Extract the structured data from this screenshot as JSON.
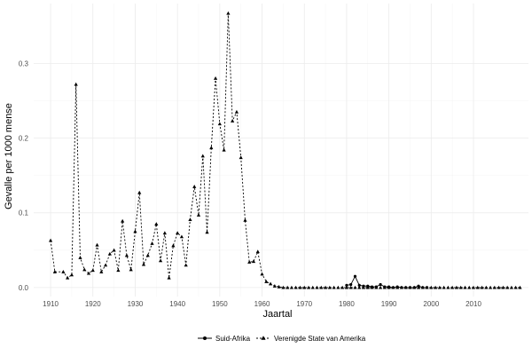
{
  "chart_data": {
    "type": "line",
    "title": "",
    "xlabel": "Jaartal",
    "ylabel": "Gevalle per 1000 mense",
    "xlim": [
      1906,
      2023
    ],
    "ylim": [
      -0.012,
      0.38
    ],
    "x_ticks": [
      1910,
      1920,
      1930,
      1940,
      1950,
      1960,
      1970,
      1980,
      1990,
      2000,
      2010
    ],
    "y_ticks": [
      0.0,
      0.1,
      0.2,
      0.3
    ],
    "y_tick_labels": [
      "0.0",
      "0.1",
      "0.2",
      "0.3"
    ],
    "grid": true,
    "legend_position": "bottom",
    "series": [
      {
        "name": "Suid-Afrika",
        "marker": "circle",
        "line": "solid",
        "color": "#000000",
        "points": [
          [
            1980,
            0.003
          ],
          [
            1981,
            0.004
          ],
          [
            1982,
            0.015
          ],
          [
            1983,
            0.003
          ],
          [
            1984,
            0.002
          ],
          [
            1985,
            0.002
          ],
          [
            1986,
            0.001
          ],
          [
            1987,
            0.001
          ],
          [
            1988,
            0.004
          ],
          [
            1989,
            0.001
          ],
          [
            1990,
            0.001
          ],
          [
            1991,
            0.0
          ],
          [
            1992,
            0.001
          ],
          [
            1993,
            0.0
          ],
          [
            1994,
            0.0
          ],
          [
            1995,
            0.0
          ],
          [
            1996,
            0.0
          ],
          [
            1997,
            0.002
          ],
          [
            1998,
            0.0
          ],
          [
            1999,
            0.0
          ]
        ]
      },
      {
        "name": "Verenigde State van Amerika",
        "marker": "triangle",
        "line": "dashed",
        "color": "#000000",
        "points": [
          [
            1910,
            0.063
          ],
          [
            1911,
            0.021
          ],
          [
            1913,
            0.021
          ],
          [
            1914,
            0.013
          ],
          [
            1915,
            0.017
          ],
          [
            1916,
            0.272
          ],
          [
            1917,
            0.04
          ],
          [
            1918,
            0.024
          ],
          [
            1919,
            0.019
          ],
          [
            1920,
            0.023
          ],
          [
            1921,
            0.057
          ],
          [
            1922,
            0.021
          ],
          [
            1923,
            0.03
          ],
          [
            1924,
            0.045
          ],
          [
            1925,
            0.05
          ],
          [
            1926,
            0.023
          ],
          [
            1927,
            0.089
          ],
          [
            1928,
            0.043
          ],
          [
            1929,
            0.024
          ],
          [
            1930,
            0.075
          ],
          [
            1931,
            0.127
          ],
          [
            1932,
            0.031
          ],
          [
            1933,
            0.043
          ],
          [
            1934,
            0.059
          ],
          [
            1935,
            0.085
          ],
          [
            1936,
            0.036
          ],
          [
            1937,
            0.073
          ],
          [
            1938,
            0.013
          ],
          [
            1939,
            0.056
          ],
          [
            1940,
            0.073
          ],
          [
            1941,
            0.068
          ],
          [
            1942,
            0.03
          ],
          [
            1943,
            0.091
          ],
          [
            1944,
            0.135
          ],
          [
            1945,
            0.097
          ],
          [
            1946,
            0.176
          ],
          [
            1947,
            0.074
          ],
          [
            1948,
            0.187
          ],
          [
            1949,
            0.28
          ],
          [
            1950,
            0.219
          ],
          [
            1951,
            0.184
          ],
          [
            1952,
            0.367
          ],
          [
            1953,
            0.223
          ],
          [
            1954,
            0.235
          ],
          [
            1955,
            0.174
          ],
          [
            1956,
            0.09
          ],
          [
            1957,
            0.034
          ],
          [
            1958,
            0.035
          ],
          [
            1959,
            0.048
          ],
          [
            1960,
            0.018
          ],
          [
            1961,
            0.008
          ],
          [
            1962,
            0.005
          ],
          [
            1963,
            0.002
          ],
          [
            1964,
            0.001
          ],
          [
            1965,
            0.0
          ],
          [
            1966,
            0.0
          ],
          [
            1967,
            0.0
          ],
          [
            1968,
            0.0
          ],
          [
            1969,
            0.0
          ],
          [
            1970,
            0.0
          ],
          [
            1971,
            0.0
          ],
          [
            1972,
            0.0
          ],
          [
            1973,
            0.0
          ],
          [
            1974,
            0.0
          ],
          [
            1975,
            0.0
          ],
          [
            1976,
            0.0
          ],
          [
            1977,
            0.0
          ],
          [
            1978,
            0.0
          ],
          [
            1979,
            0.0
          ],
          [
            1980,
            0.0
          ],
          [
            1981,
            0.0
          ],
          [
            1982,
            0.0
          ],
          [
            1983,
            0.0
          ],
          [
            1984,
            0.0
          ],
          [
            1985,
            0.0
          ],
          [
            1986,
            0.0
          ],
          [
            1987,
            0.0
          ],
          [
            1988,
            0.0
          ],
          [
            1989,
            0.0
          ],
          [
            1990,
            0.0
          ],
          [
            1991,
            0.0
          ],
          [
            1992,
            0.0
          ],
          [
            1993,
            0.0
          ],
          [
            1994,
            0.0
          ],
          [
            1995,
            0.0
          ],
          [
            1996,
            0.0
          ],
          [
            1997,
            0.0
          ],
          [
            1998,
            0.0
          ],
          [
            1999,
            0.0
          ],
          [
            2000,
            0.0
          ],
          [
            2001,
            0.0
          ],
          [
            2002,
            0.0
          ],
          [
            2003,
            0.0
          ],
          [
            2004,
            0.0
          ],
          [
            2005,
            0.0
          ],
          [
            2006,
            0.0
          ],
          [
            2007,
            0.0
          ],
          [
            2008,
            0.0
          ],
          [
            2009,
            0.0
          ],
          [
            2010,
            0.0
          ],
          [
            2011,
            0.0
          ],
          [
            2012,
            0.0
          ],
          [
            2013,
            0.0
          ],
          [
            2014,
            0.0
          ],
          [
            2015,
            0.0
          ],
          [
            2016,
            0.0
          ],
          [
            2017,
            0.0
          ],
          [
            2018,
            0.0
          ],
          [
            2019,
            0.0
          ],
          [
            2020,
            0.0
          ],
          [
            2021,
            0.0
          ]
        ]
      }
    ]
  }
}
